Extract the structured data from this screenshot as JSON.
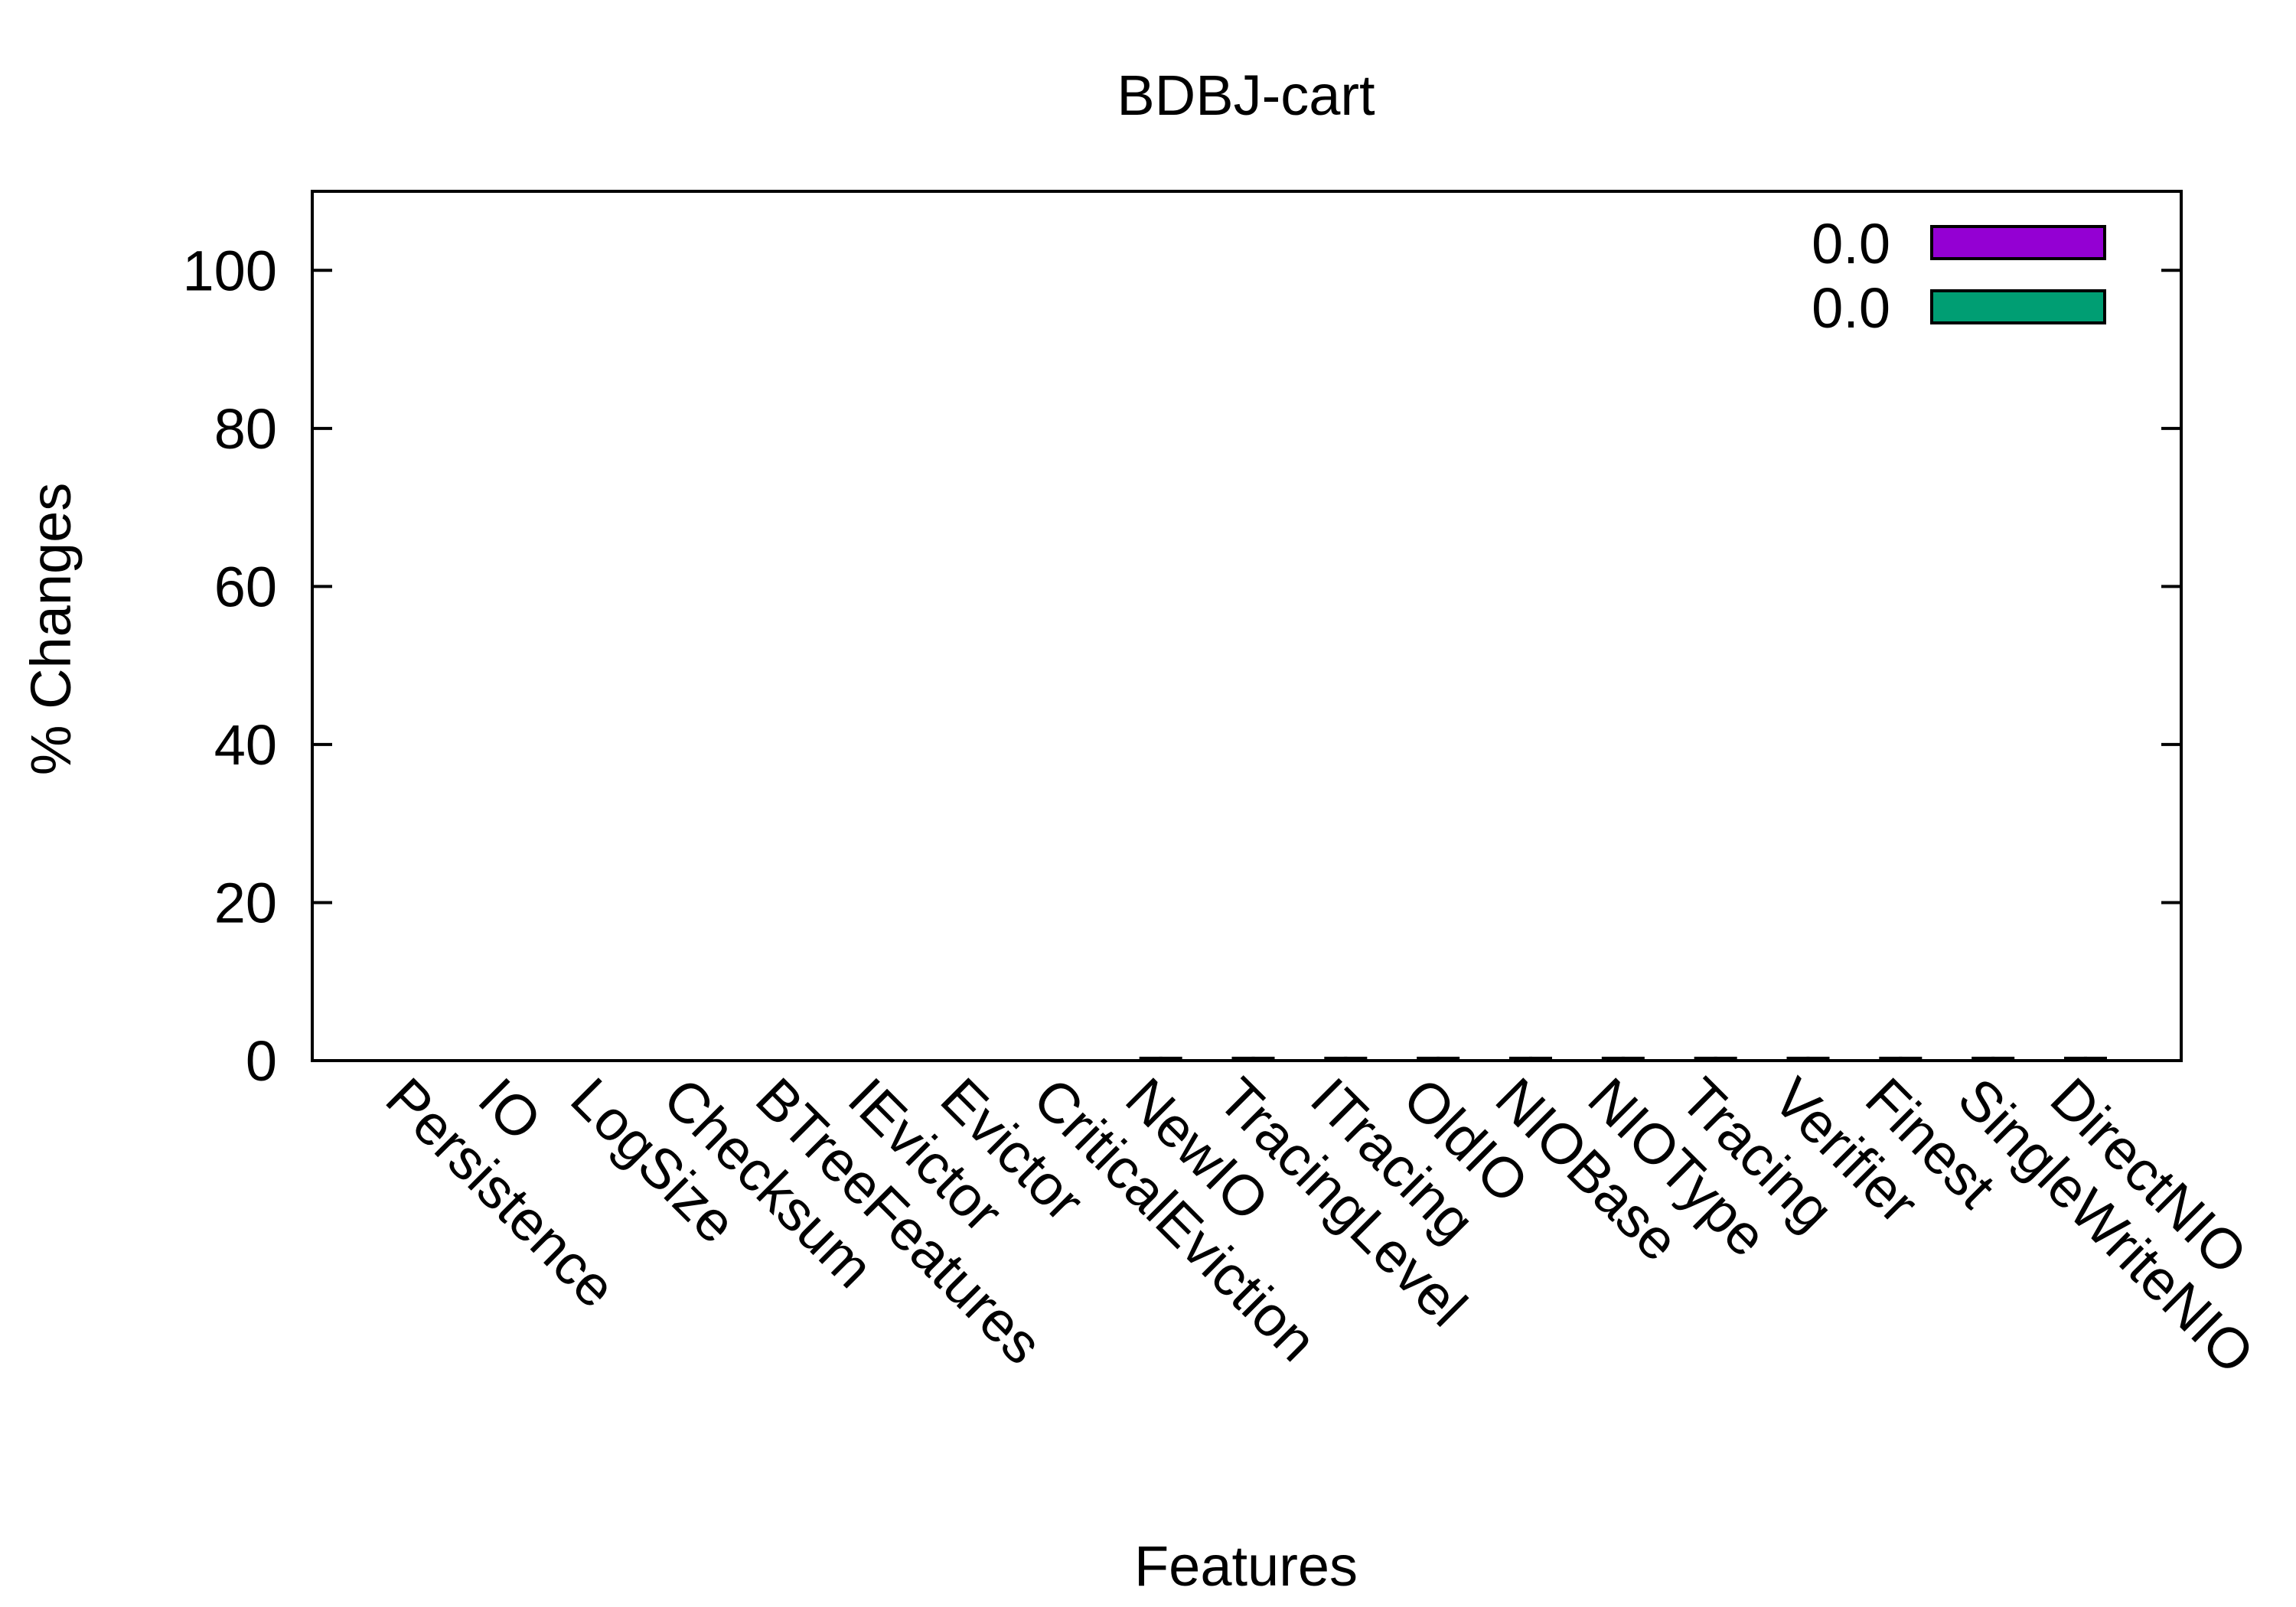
{
  "chart_data": {
    "type": "bar",
    "title": "BDBJ-cart",
    "xlabel": "Features",
    "ylabel": "% Changes",
    "ylim": [
      0,
      110
    ],
    "yticks": [
      0,
      20,
      40,
      60,
      80,
      100
    ],
    "categories": [
      "Persistence",
      "IO",
      "LogSize",
      "Checksum",
      "BTreeFeatures",
      "IEvictor",
      "Evictor",
      "CriticalEviction",
      "NewIO",
      "TracingLevel",
      "ITracing",
      "OldIO",
      "NIOBase",
      "NIOType",
      "Tracing",
      "Verifier",
      "Finest",
      "SingleWriteNIO",
      "DirectNIO"
    ],
    "series": [
      {
        "name": "0.0",
        "color": "#9400d3",
        "values": [
          0,
          0,
          0,
          0,
          0,
          0,
          0,
          0,
          0.3,
          0.3,
          0.3,
          0.3,
          0.3,
          0.3,
          0.3,
          0.3,
          0.3,
          0.3,
          0.3
        ]
      },
      {
        "name": "0.0",
        "color": "#009e73",
        "values": [
          0,
          0,
          0,
          0,
          0,
          0,
          0,
          0,
          0.3,
          0.3,
          0.3,
          0.3,
          0.3,
          0.3,
          0.3,
          0.3,
          0.3,
          0.3,
          0.3
        ]
      }
    ],
    "legend_position": "top-right",
    "grid": false
  }
}
